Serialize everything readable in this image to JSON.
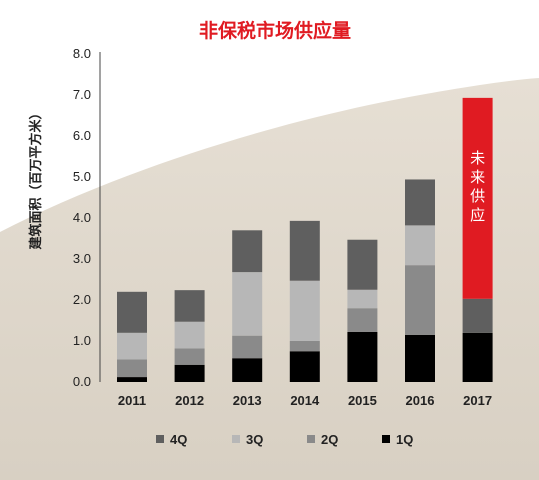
{
  "chart_data": {
    "type": "bar",
    "stacked": true,
    "title": "非保税市场供应量",
    "ylabel": "建筑面积（百万平方米）",
    "ylim": [
      0,
      8
    ],
    "yticks": [
      "0.0",
      "1.0",
      "2.0",
      "3.0",
      "4.0",
      "5.0",
      "6.0",
      "7.0",
      "8.0"
    ],
    "categories": [
      "2011",
      "2012",
      "2013",
      "2014",
      "2015",
      "2016",
      "2017"
    ],
    "series": [
      {
        "name": "1Q",
        "color": "#000000",
        "values": [
          0.12,
          0.42,
          0.58,
          0.75,
          1.22,
          1.15,
          1.2
        ]
      },
      {
        "name": "2Q",
        "color": "#8a8a8a",
        "values": [
          0.43,
          0.4,
          0.55,
          0.25,
          0.58,
          1.7,
          0
        ]
      },
      {
        "name": "3Q",
        "color": "#b7b7b7",
        "values": [
          0.65,
          0.65,
          1.55,
          1.47,
          0.45,
          0.97,
          0
        ]
      },
      {
        "name": "4Q",
        "color": "#5f5f5f",
        "values": [
          1.0,
          0.77,
          1.02,
          1.46,
          1.22,
          1.12,
          0.83
        ]
      }
    ],
    "extra_segment": {
      "category": "2017",
      "label": "未来供应",
      "color": "#e01b22",
      "value": 4.9
    },
    "legend": {
      "position": "bottom",
      "order": [
        "4Q",
        "3Q",
        "2Q",
        "1Q"
      ]
    },
    "grid": false
  }
}
